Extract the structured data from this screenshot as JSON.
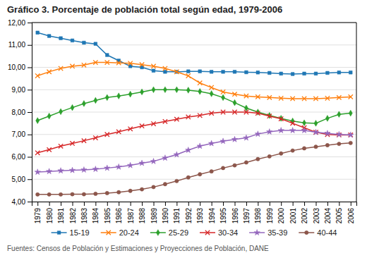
{
  "chart_data": {
    "type": "line",
    "title": "Gráfico 3. Porcentaje de población total según edad, 1979-2006",
    "annotations": [
      "Fuentes: Censos de Población y Estimaciones y Proyecciones de Población, DANE"
    ],
    "x": [
      1979,
      1980,
      1981,
      1982,
      1983,
      1984,
      1985,
      1986,
      1987,
      1988,
      1989,
      1990,
      1991,
      1992,
      1993,
      1994,
      1995,
      1996,
      1997,
      1998,
      1999,
      2000,
      2001,
      2002,
      2003,
      2004,
      2005,
      2006
    ],
    "series": [
      {
        "name": "15-19",
        "marker": "square",
        "values": [
          11.55,
          11.4,
          11.3,
          11.2,
          11.1,
          11.05,
          10.55,
          10.3,
          10.05,
          10.0,
          9.85,
          9.8,
          9.8,
          9.82,
          9.82,
          9.8,
          9.8,
          9.8,
          9.78,
          9.77,
          9.75,
          9.72,
          9.7,
          9.72,
          9.72,
          9.75,
          9.77,
          9.77
        ]
      },
      {
        "name": "20-24",
        "marker": "x",
        "values": [
          9.62,
          9.8,
          9.95,
          10.05,
          10.1,
          10.22,
          10.22,
          10.2,
          10.18,
          10.12,
          10.05,
          9.95,
          9.8,
          9.62,
          9.3,
          9.1,
          8.9,
          8.8,
          8.72,
          8.68,
          8.65,
          8.62,
          8.6,
          8.6,
          8.6,
          8.62,
          8.65,
          8.68
        ]
      },
      {
        "name": "25-29",
        "marker": "diamond",
        "values": [
          7.62,
          7.82,
          8.02,
          8.2,
          8.38,
          8.52,
          8.65,
          8.72,
          8.8,
          8.9,
          9.0,
          9.0,
          9.0,
          8.98,
          8.92,
          8.82,
          8.65,
          8.42,
          8.18,
          8.0,
          7.85,
          7.72,
          7.6,
          7.52,
          7.5,
          7.72,
          7.9,
          7.95
        ]
      },
      {
        "name": "30-34",
        "marker": "x",
        "values": [
          6.18,
          6.32,
          6.48,
          6.6,
          6.72,
          6.85,
          7.0,
          7.12,
          7.25,
          7.38,
          7.48,
          7.58,
          7.68,
          7.78,
          7.85,
          7.95,
          8.0,
          8.0,
          8.0,
          7.95,
          7.82,
          7.7,
          7.5,
          7.3,
          7.1,
          7.0,
          6.98,
          6.98
        ]
      },
      {
        "name": "35-39",
        "marker": "star",
        "values": [
          5.32,
          5.35,
          5.38,
          5.4,
          5.42,
          5.45,
          5.5,
          5.55,
          5.62,
          5.72,
          5.8,
          5.95,
          6.1,
          6.3,
          6.48,
          6.6,
          6.7,
          6.78,
          6.85,
          7.02,
          7.12,
          7.18,
          7.18,
          7.18,
          7.1,
          7.05,
          7.0,
          6.98
        ]
      },
      {
        "name": "40-44",
        "marker": "circle",
        "values": [
          4.32,
          4.32,
          4.32,
          4.33,
          4.33,
          4.35,
          4.38,
          4.42,
          4.48,
          4.55,
          4.65,
          4.78,
          4.92,
          5.08,
          5.22,
          5.35,
          5.5,
          5.62,
          5.75,
          5.9,
          6.02,
          6.15,
          6.28,
          6.38,
          6.45,
          6.52,
          6.58,
          6.62
        ]
      }
    ],
    "xlim": [
      1978.5,
      2006.5
    ],
    "xticks": [
      1979,
      1980,
      1981,
      1982,
      1983,
      1984,
      1985,
      1986,
      1987,
      1988,
      1989,
      1990,
      1991,
      1992,
      1993,
      1994,
      1995,
      1996,
      1997,
      1998,
      1999,
      2000,
      2001,
      2002,
      2003,
      2004,
      2005,
      2006
    ],
    "ylim": [
      4.0,
      12.0
    ],
    "yticks": [
      {
        "value": 4.0,
        "label": "4,00"
      },
      {
        "value": 5.0,
        "label": "5,00"
      },
      {
        "value": 6.0,
        "label": "6,00"
      },
      {
        "value": 7.0,
        "label": "7,00"
      },
      {
        "value": 8.0,
        "label": "8,00"
      },
      {
        "value": 9.0,
        "label": "9,00"
      },
      {
        "value": 10.0,
        "label": "10,00"
      },
      {
        "value": 11.0,
        "label": "11,00"
      },
      {
        "value": 12.0,
        "label": "12,00"
      }
    ],
    "grid": true,
    "legend": "bottom"
  }
}
